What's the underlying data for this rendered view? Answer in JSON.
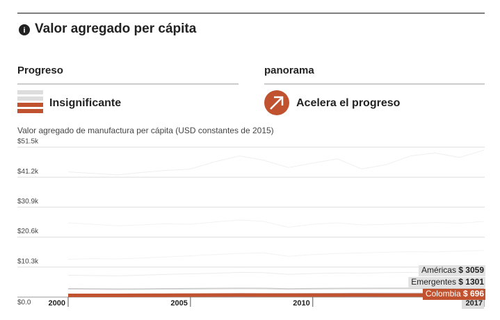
{
  "header": {
    "title": "Valor agregado per cápita"
  },
  "panels": [
    {
      "heading": "Progreso",
      "label": "Insignificante"
    },
    {
      "heading": "panorama",
      "label": "Acelera el progreso"
    }
  ],
  "chart_data": {
    "type": "line",
    "subtitle": "Valor agregado de manufactura per cápita (USD constantes de 2015)",
    "x": [
      2000,
      2001,
      2002,
      2003,
      2004,
      2005,
      2006,
      2007,
      2008,
      2009,
      2010,
      2011,
      2012,
      2013,
      2014,
      2015,
      2016,
      2017
    ],
    "xlim": [
      2000,
      2017
    ],
    "xticks": [
      2000,
      2005,
      2010,
      2017
    ],
    "ylim": [
      0,
      51500
    ],
    "yticks": [
      {
        "value": 0,
        "label": "$0.0"
      },
      {
        "value": 10300,
        "label": "$10.3k"
      },
      {
        "value": 20600,
        "label": "$20.6k"
      },
      {
        "value": 30900,
        "label": "$30.9k"
      },
      {
        "value": 41200,
        "label": "$41.2k"
      },
      {
        "value": 51500,
        "label": "$51.5k"
      }
    ],
    "grid": true,
    "background_series": [
      {
        "color": "#efefef",
        "values": [
          43000,
          42500,
          42000,
          42800,
          43500,
          44000,
          46500,
          48500,
          47000,
          44500,
          46000,
          47500,
          44000,
          45500,
          48500,
          49500,
          48000,
          50500
        ]
      },
      {
        "color": "#f2f2f2",
        "values": [
          25500,
          25000,
          24500,
          24800,
          25200,
          25000,
          25800,
          26500,
          26000,
          24000,
          25000,
          25500,
          24800,
          25000,
          25300,
          25600,
          25400,
          26000
        ]
      },
      {
        "color": "#f2f2f2",
        "values": [
          13000,
          13200,
          13100,
          13400,
          13800,
          14200,
          14600,
          15000,
          15200,
          14000,
          14600,
          15000,
          15200,
          15400,
          15600,
          15500,
          15800,
          16000
        ]
      },
      {
        "color": "#ececec",
        "values": [
          7500,
          7400,
          7300,
          7500,
          7800,
          8000,
          8200,
          8500,
          8400,
          7800,
          8100,
          8300,
          8200,
          8400,
          8500,
          8300,
          8400,
          8600
        ]
      }
    ],
    "series": [
      {
        "name": "Américas",
        "color": "#d0d0d0",
        "values": [
          2850,
          2800,
          2750,
          2780,
          2850,
          2900,
          2950,
          3000,
          2980,
          2800,
          2900,
          2950,
          2980,
          3000,
          3010,
          3030,
          3040,
          3059
        ],
        "value_labels": [
          null,
          null,
          null,
          null,
          null,
          null,
          null,
          null,
          null,
          null,
          null,
          null,
          null,
          null,
          null,
          null,
          null,
          "$ 3059"
        ]
      },
      {
        "name": "Emergentes",
        "color": "#c4c4c4",
        "values": [
          950,
          960,
          980,
          1000,
          1030,
          1060,
          1090,
          1120,
          1140,
          1130,
          1170,
          1200,
          1220,
          1240,
          1260,
          1270,
          1285,
          1301
        ],
        "value_labels": [
          null,
          null,
          null,
          null,
          null,
          null,
          null,
          null,
          null,
          null,
          null,
          null,
          null,
          null,
          null,
          null,
          null,
          "$ 1301"
        ]
      },
      {
        "name": "Colombia",
        "color": "#c1522f",
        "values": [
          610,
          600,
          605,
          620,
          640,
          660,
          690,
          710,
          700,
          680,
          690,
          700,
          705,
          700,
          695,
          690,
          692,
          696
        ],
        "value_labels": [
          null,
          null,
          null,
          null,
          null,
          null,
          null,
          null,
          null,
          null,
          null,
          null,
          null,
          null,
          null,
          null,
          null,
          "$ 696"
        ]
      }
    ]
  }
}
